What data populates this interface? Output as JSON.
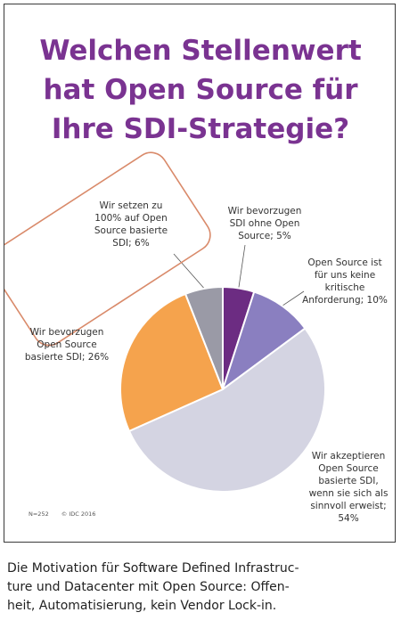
{
  "chart_data": {
    "type": "pie",
    "title_lines": [
      "Welchen Stellenwert",
      "hat Open Source für",
      "Ihre SDI-Strategie?"
    ],
    "slices": [
      {
        "label_lines": [
          "Wir bevorzugen",
          "SDI ohne Open",
          "Source; 5%"
        ],
        "value": 5,
        "color": "#6c2c82"
      },
      {
        "label_lines": [
          "Open Source ist",
          "für uns keine",
          "kritische",
          "Anforderung; 10%"
        ],
        "value": 10,
        "color": "#8a7fc0"
      },
      {
        "label_lines": [
          "Wir akzeptieren",
          "Open Source",
          "basierte SDI,",
          "wenn sie sich als",
          "sinnvoll erweist;",
          "54%"
        ],
        "value": 54,
        "color": "#d4d4e2"
      },
      {
        "label_lines": [
          "Wir bevorzugen",
          "Open Source",
          "basierte SDI; 26%"
        ],
        "value": 26,
        "color": "#f5a34d"
      },
      {
        "label_lines": [
          "Wir setzen zu",
          "100% auf Open",
          "Source basierte",
          "SDI; 6%"
        ],
        "value": 6,
        "color": "#9a9aa6"
      }
    ],
    "start_angle_deg": 0,
    "direction": "clockwise",
    "highlight_color": "#d98a6a"
  },
  "footnote": {
    "sample": "N=252",
    "copyright": "© IDC 2016"
  },
  "caption_lines": [
    "Die Motivation für Software Defined Infrastruc-",
    "ture und Datacenter mit Open Source: Offen-",
    "heit, Automatisierung, kein Vendor Lock-in."
  ]
}
